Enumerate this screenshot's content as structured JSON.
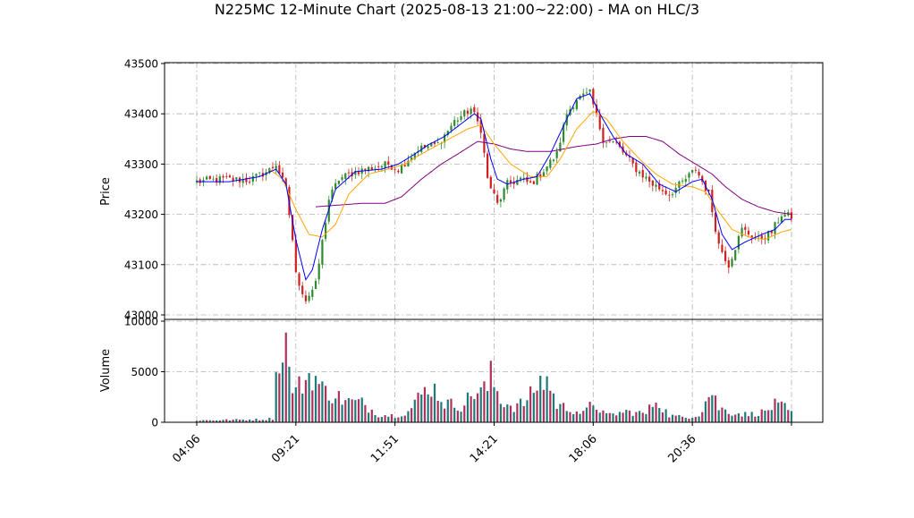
{
  "chart_data": {
    "type": "candlestick",
    "title": "N225MC 12-Minute Chart (2025-08-13 21:00~22:00) - MA on HLC/3",
    "price_panel": {
      "ylabel": "Price",
      "ylim": [
        43000,
        43500
      ],
      "yticks": [
        43000,
        43100,
        43200,
        43300,
        43400,
        43500
      ],
      "grid": true
    },
    "volume_panel": {
      "ylabel": "Volume",
      "ylim": [
        0,
        10000
      ],
      "yticks": [
        0,
        5000,
        10000
      ],
      "grid": true
    },
    "x_tick_labels": [
      "04:06",
      "09:21",
      "11:51",
      "14:21",
      "18:06",
      "20:36"
    ],
    "x_tick_bar_index": [
      0,
      30,
      60,
      90,
      120,
      150
    ],
    "bar_count": 181,
    "colors": {
      "up": "#2e8b2e",
      "down": "#cc2222",
      "ma_fast": "#0000ff",
      "ma_mid": "#ffa500",
      "ma_slow": "#800080",
      "vol_a": "#1f7a7a",
      "vol_b": "#b03060",
      "grid": "#b0b0b0"
    },
    "price_anchors": [
      [
        0,
        43265
      ],
      [
        8,
        43270
      ],
      [
        16,
        43268
      ],
      [
        22,
        43288
      ],
      [
        24,
        43300
      ],
      [
        27,
        43250
      ],
      [
        29,
        43150
      ],
      [
        30,
        43080
      ],
      [
        33,
        43030
      ],
      [
        36,
        43060
      ],
      [
        40,
        43230
      ],
      [
        43,
        43270
      ],
      [
        48,
        43285
      ],
      [
        58,
        43300
      ],
      [
        61,
        43290
      ],
      [
        67,
        43330
      ],
      [
        73,
        43340
      ],
      [
        78,
        43385
      ],
      [
        83,
        43410
      ],
      [
        86,
        43370
      ],
      [
        88,
        43270
      ],
      [
        91,
        43220
      ],
      [
        94,
        43260
      ],
      [
        98,
        43270
      ],
      [
        101,
        43260
      ],
      [
        104,
        43280
      ],
      [
        109,
        43320
      ],
      [
        112,
        43400
      ],
      [
        115,
        43430
      ],
      [
        119,
        43440
      ],
      [
        123,
        43350
      ],
      [
        127,
        43340
      ],
      [
        133,
        43290
      ],
      [
        138,
        43260
      ],
      [
        143,
        43240
      ],
      [
        148,
        43270
      ],
      [
        151,
        43290
      ],
      [
        155,
        43240
      ],
      [
        158,
        43140
      ],
      [
        161,
        43100
      ],
      [
        165,
        43170
      ],
      [
        170,
        43150
      ],
      [
        174,
        43165
      ],
      [
        177,
        43200
      ],
      [
        180,
        43195
      ]
    ],
    "volume_anchors": [
      [
        0,
        200
      ],
      [
        10,
        250
      ],
      [
        20,
        300
      ],
      [
        23,
        400
      ],
      [
        24,
        6000
      ],
      [
        25,
        4500
      ],
      [
        26,
        9200
      ],
      [
        27,
        8800
      ],
      [
        28,
        4800
      ],
      [
        30,
        3200
      ],
      [
        32,
        4200
      ],
      [
        35,
        5100
      ],
      [
        38,
        3400
      ],
      [
        42,
        2800
      ],
      [
        45,
        2200
      ],
      [
        50,
        2000
      ],
      [
        55,
        800
      ],
      [
        60,
        700
      ],
      [
        64,
        1100
      ],
      [
        68,
        2900
      ],
      [
        71,
        3900
      ],
      [
        75,
        2000
      ],
      [
        80,
        1700
      ],
      [
        84,
        3100
      ],
      [
        88,
        3500
      ],
      [
        89,
        4800
      ],
      [
        92,
        2300
      ],
      [
        96,
        1600
      ],
      [
        100,
        2200
      ],
      [
        103,
        3900
      ],
      [
        106,
        4500
      ],
      [
        109,
        1800
      ],
      [
        113,
        1400
      ],
      [
        117,
        900
      ],
      [
        120,
        2000
      ],
      [
        124,
        700
      ],
      [
        130,
        1100
      ],
      [
        136,
        900
      ],
      [
        139,
        2400
      ],
      [
        143,
        700
      ],
      [
        148,
        500
      ],
      [
        152,
        800
      ],
      [
        155,
        2800
      ],
      [
        156,
        3200
      ],
      [
        158,
        1500
      ],
      [
        162,
        1000
      ],
      [
        167,
        800
      ],
      [
        172,
        1100
      ],
      [
        175,
        1800
      ],
      [
        178,
        1500
      ],
      [
        180,
        900
      ]
    ],
    "ma_fast_anchors": [
      [
        0,
        43265
      ],
      [
        10,
        43265
      ],
      [
        19,
        43275
      ],
      [
        24,
        43290
      ],
      [
        27,
        43260
      ],
      [
        30,
        43150
      ],
      [
        33,
        43070
      ],
      [
        35,
        43090
      ],
      [
        38,
        43170
      ],
      [
        42,
        43250
      ],
      [
        48,
        43285
      ],
      [
        56,
        43290
      ],
      [
        61,
        43300
      ],
      [
        66,
        43320
      ],
      [
        70,
        43338
      ],
      [
        75,
        43355
      ],
      [
        80,
        43380
      ],
      [
        84,
        43400
      ],
      [
        86,
        43390
      ],
      [
        89,
        43310
      ],
      [
        91,
        43270
      ],
      [
        94,
        43260
      ],
      [
        99,
        43270
      ],
      [
        103,
        43275
      ],
      [
        107,
        43320
      ],
      [
        112,
        43390
      ],
      [
        115,
        43430
      ],
      [
        119,
        43440
      ],
      [
        122,
        43400
      ],
      [
        126,
        43355
      ],
      [
        130,
        43320
      ],
      [
        135,
        43300
      ],
      [
        140,
        43260
      ],
      [
        145,
        43245
      ],
      [
        150,
        43265
      ],
      [
        153,
        43270
      ],
      [
        156,
        43230
      ],
      [
        159,
        43160
      ],
      [
        162,
        43130
      ],
      [
        166,
        43145
      ],
      [
        171,
        43160
      ],
      [
        175,
        43170
      ],
      [
        178,
        43190
      ],
      [
        180,
        43190
      ]
    ],
    "ma_mid_anchors": [
      [
        22,
        43290
      ],
      [
        26,
        43270
      ],
      [
        30,
        43210
      ],
      [
        34,
        43160
      ],
      [
        38,
        43155
      ],
      [
        42,
        43180
      ],
      [
        46,
        43240
      ],
      [
        52,
        43280
      ],
      [
        58,
        43290
      ],
      [
        63,
        43300
      ],
      [
        68,
        43320
      ],
      [
        75,
        43345
      ],
      [
        82,
        43370
      ],
      [
        86,
        43378
      ],
      [
        90,
        43340
      ],
      [
        95,
        43300
      ],
      [
        101,
        43275
      ],
      [
        106,
        43275
      ],
      [
        110,
        43310
      ],
      [
        115,
        43370
      ],
      [
        120,
        43405
      ],
      [
        124,
        43390
      ],
      [
        129,
        43345
      ],
      [
        134,
        43310
      ],
      [
        139,
        43280
      ],
      [
        144,
        43260
      ],
      [
        150,
        43255
      ],
      [
        154,
        43245
      ],
      [
        158,
        43205
      ],
      [
        162,
        43170
      ],
      [
        167,
        43155
      ],
      [
        172,
        43150
      ],
      [
        177,
        43165
      ],
      [
        180,
        43170
      ]
    ],
    "ma_slow_anchors": [
      [
        36,
        43215
      ],
      [
        42,
        43218
      ],
      [
        50,
        43222
      ],
      [
        57,
        43222
      ],
      [
        62,
        43235
      ],
      [
        68,
        43270
      ],
      [
        74,
        43300
      ],
      [
        79,
        43320
      ],
      [
        85,
        43345
      ],
      [
        90,
        43340
      ],
      [
        95,
        43330
      ],
      [
        100,
        43325
      ],
      [
        107,
        43325
      ],
      [
        115,
        43335
      ],
      [
        121,
        43340
      ],
      [
        126,
        43350
      ],
      [
        131,
        43355
      ],
      [
        136,
        43355
      ],
      [
        141,
        43345
      ],
      [
        146,
        43320
      ],
      [
        151,
        43300
      ],
      [
        156,
        43280
      ],
      [
        160,
        43255
      ],
      [
        165,
        43230
      ],
      [
        170,
        43215
      ],
      [
        175,
        43205
      ],
      [
        180,
        43200
      ]
    ]
  }
}
